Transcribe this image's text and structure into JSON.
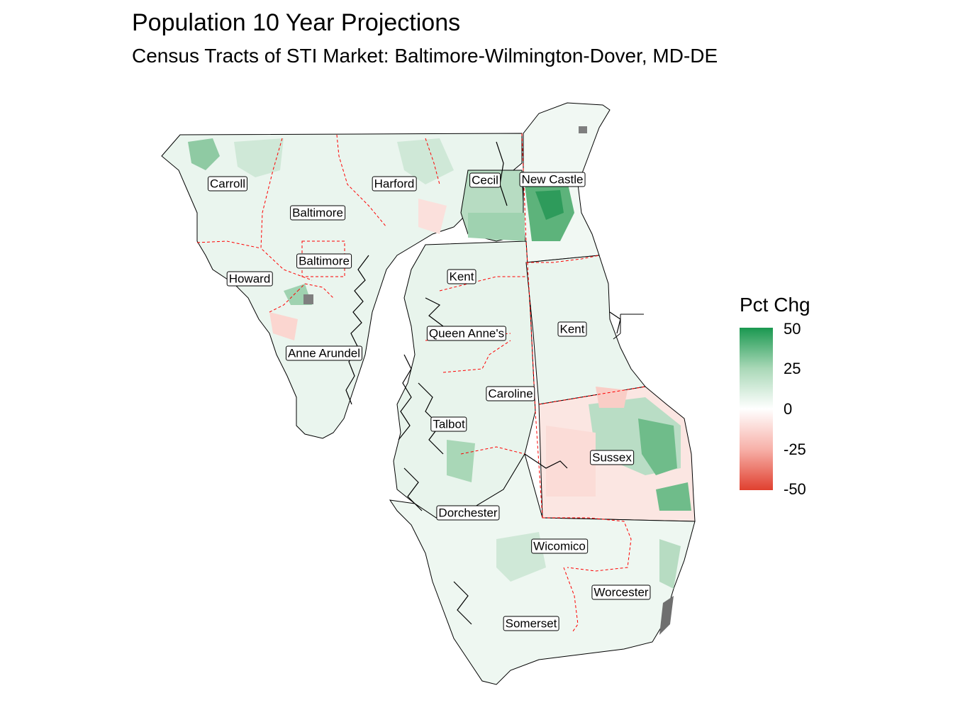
{
  "title": "Population 10 Year Projections",
  "subtitle": "Census Tracts of STI Market: Baltimore-Wilmington-Dover, MD-DE",
  "legend": {
    "title": "Pct Chg",
    "ticks": [
      "50",
      "25",
      "0",
      "-25",
      "-50"
    ],
    "colors": {
      "high": "#1a9850",
      "mid": "#ffffff",
      "low": "#e0402f"
    }
  },
  "counties": {
    "carroll": "Carroll",
    "harford": "Harford",
    "cecil": "Cecil",
    "new_castle": "New Castle",
    "baltimore_county": "Baltimore",
    "baltimore_city": "Baltimore",
    "howard": "Howard",
    "kent_md": "Kent",
    "kent_de": "Kent",
    "queen_annes": "Queen Anne's",
    "anne_arundel": "Anne Arundel",
    "caroline": "Caroline",
    "talbot": "Talbot",
    "sussex": "Sussex",
    "dorchester": "Dorchester",
    "wicomico": "Wicomico",
    "worcester": "Worcester",
    "somerset": "Somerset"
  }
}
